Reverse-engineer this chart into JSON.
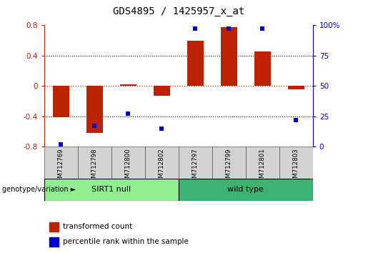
{
  "title": "GDS4895 / 1425957_x_at",
  "samples": [
    "GSM712769",
    "GSM712798",
    "GSM712800",
    "GSM712802",
    "GSM712797",
    "GSM712799",
    "GSM712801",
    "GSM712803"
  ],
  "red_bars": [
    -0.41,
    -0.62,
    0.02,
    -0.13,
    0.6,
    0.78,
    0.46,
    -0.04
  ],
  "blue_dot_pct": [
    2,
    17,
    27,
    15,
    97,
    97,
    97,
    22
  ],
  "group1_label": "SIRT1 null",
  "group2_label": "wild type",
  "group1_indices": [
    0,
    1,
    2,
    3
  ],
  "group2_indices": [
    4,
    5,
    6,
    7
  ],
  "ylim": [
    -0.8,
    0.8
  ],
  "y2lim": [
    0,
    100
  ],
  "yticks": [
    -0.8,
    -0.4,
    0.0,
    0.4,
    0.8
  ],
  "y2ticks": [
    0,
    25,
    50,
    75,
    100
  ],
  "bar_color": "#BB2200",
  "dot_color": "#0000CC",
  "group1_color": "#90EE90",
  "group2_color": "#3CB371",
  "genotype_label": "genotype/variation",
  "legend_bar_label": "transformed count",
  "legend_dot_label": "percentile rank within the sample",
  "title_fontsize": 10,
  "tick_fontsize": 7.5,
  "bar_width": 0.5
}
